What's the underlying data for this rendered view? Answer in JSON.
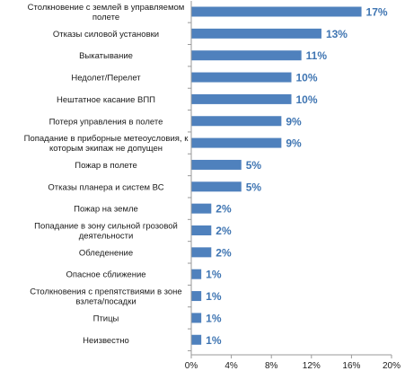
{
  "chart_data": {
    "type": "bar",
    "orientation": "horizontal",
    "title": "",
    "xlabel": "",
    "ylabel": "",
    "xlim": [
      0,
      20
    ],
    "x_ticks": [
      "0%",
      "4%",
      "8%",
      "12%",
      "16%",
      "20%"
    ],
    "grid": false,
    "legend": "none",
    "categories": [
      [
        "Столкновение с землей в управляемом",
        "полете"
      ],
      [
        "Отказы силовой установки"
      ],
      [
        "Выкатывание"
      ],
      [
        "Недолет/Перелет"
      ],
      [
        "Нештатное касание ВПП"
      ],
      [
        "Потеря управления в полете"
      ],
      [
        "Попадание в приборные метеоусловия, к",
        "которым экипаж не допущен"
      ],
      [
        "Пожар в полете"
      ],
      [
        "Отказы планера и систем ВС"
      ],
      [
        "Пожар на земле"
      ],
      [
        "Попадание в зону сильной грозовой",
        "деятельности"
      ],
      [
        "Обледенение"
      ],
      [
        "Опасное сближение"
      ],
      [
        "Столкновения с препятствиями в зоне",
        "взлета/посадки"
      ],
      [
        "Птицы"
      ],
      [
        "Неизвестно"
      ]
    ],
    "values": [
      17,
      13,
      11,
      10,
      10,
      9,
      9,
      5,
      5,
      2,
      2,
      2,
      1,
      1,
      1,
      1
    ],
    "value_labels": [
      "17%",
      "13%",
      "11%",
      "10%",
      "10%",
      "9%",
      "9%",
      "5%",
      "5%",
      "2%",
      "2%",
      "2%",
      "1%",
      "1%",
      "1%",
      "1%"
    ],
    "colors": {
      "bar": "#4f81bd",
      "value_label": "#3f75b2",
      "axis": "#9a9a9a"
    }
  }
}
